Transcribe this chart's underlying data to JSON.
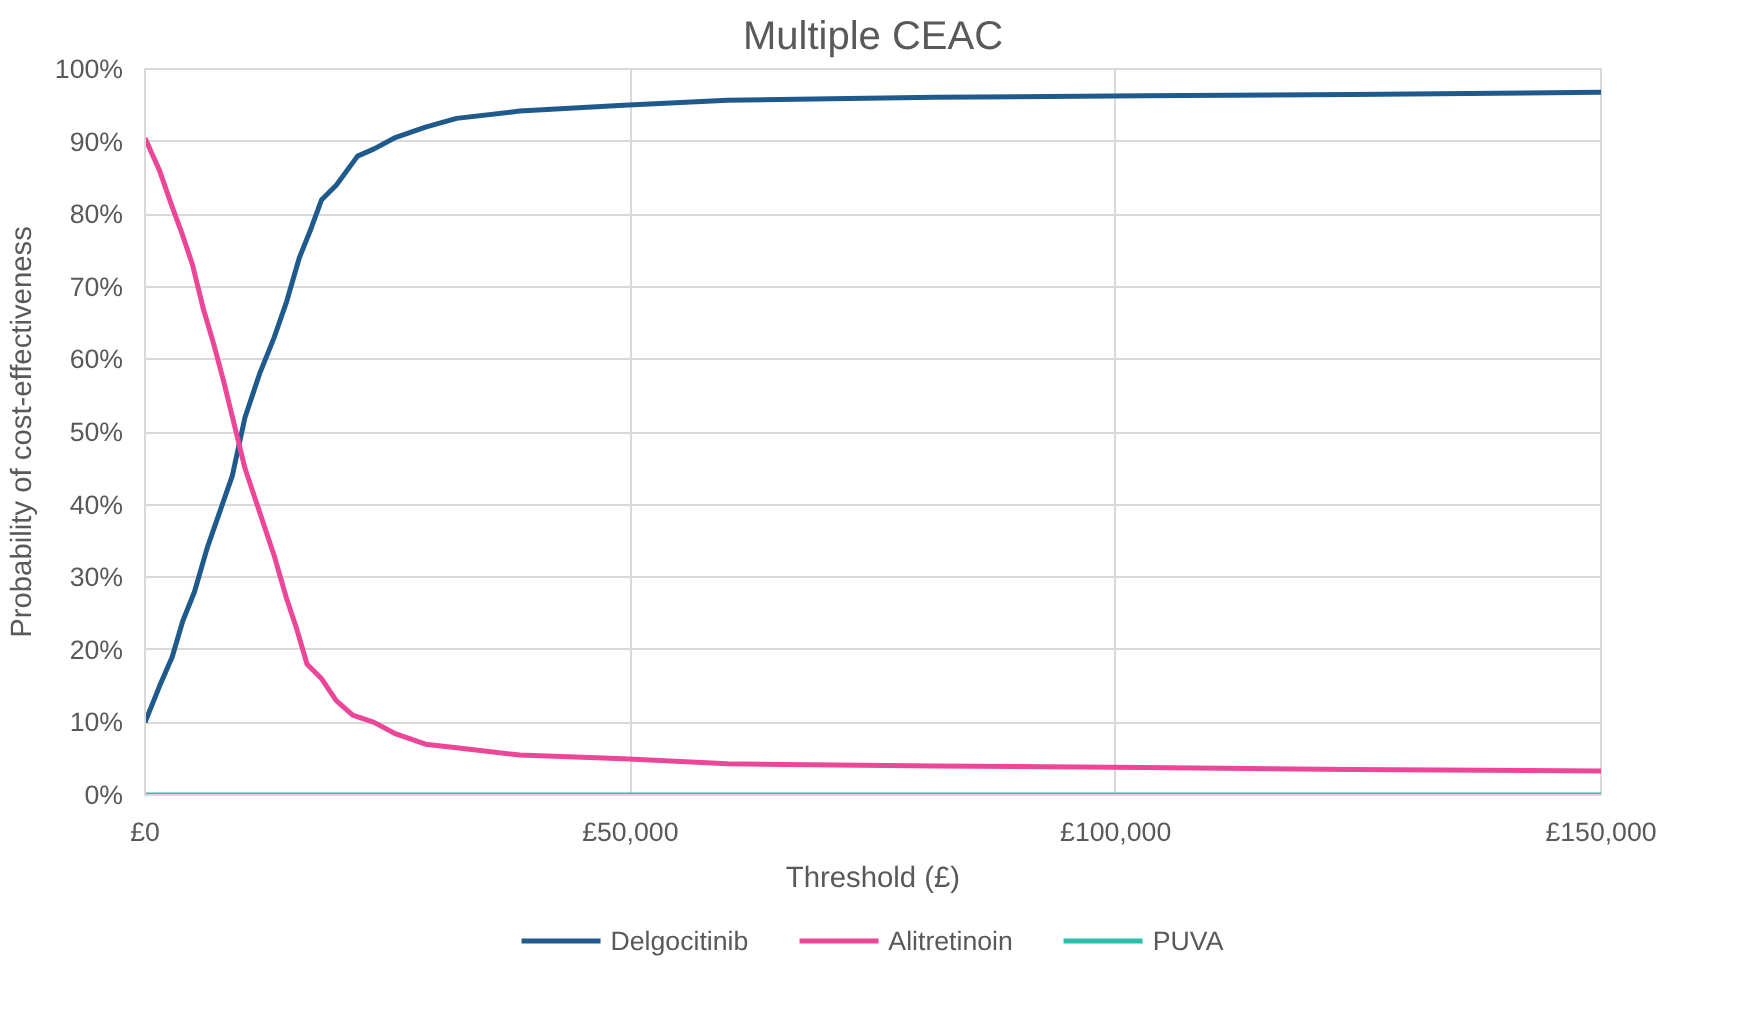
{
  "chart_data": {
    "type": "line",
    "title": "Multiple CEAC",
    "xlabel": "Threshold (£)",
    "ylabel": "Probability of cost-effectiveness",
    "xlim": [
      0,
      150000
    ],
    "ylim": [
      0,
      100
    ],
    "xticks": [
      {
        "value": 0,
        "label": "£0"
      },
      {
        "value": 50000,
        "label": "£50,000"
      },
      {
        "value": 100000,
        "label": "£100,000"
      },
      {
        "value": 150000,
        "label": "£150,000"
      }
    ],
    "yticks": [
      {
        "value": 0,
        "label": "0%"
      },
      {
        "value": 10,
        "label": "10%"
      },
      {
        "value": 20,
        "label": "20%"
      },
      {
        "value": 30,
        "label": "30%"
      },
      {
        "value": 40,
        "label": "40%"
      },
      {
        "value": 50,
        "label": "50%"
      },
      {
        "value": 60,
        "label": "60%"
      },
      {
        "value": 70,
        "label": "70%"
      },
      {
        "value": 80,
        "label": "80%"
      },
      {
        "value": 90,
        "label": "90%"
      },
      {
        "value": 100,
        "label": "100%"
      }
    ],
    "grid": true,
    "legend": "bottom",
    "marker": "none",
    "line_style": "solid",
    "series": [
      {
        "name": "Delgocitinib",
        "color": "#1f5a8c",
        "x": [
          0,
          1500,
          2800,
          3900,
          5100,
          6400,
          7700,
          9000,
          10300,
          11800,
          13300,
          14600,
          15900,
          17100,
          18200,
          19700,
          21900,
          23600,
          25700,
          28900,
          32100,
          38600,
          49300,
          60000,
          81400,
          102900,
          124300,
          150000
        ],
        "values": [
          10,
          15,
          19,
          24,
          28,
          34,
          39,
          44,
          52,
          58,
          63,
          68,
          74,
          78,
          82,
          84,
          88,
          89,
          90.5,
          92,
          93.2,
          94.2,
          95,
          95.7,
          96.1,
          96.3,
          96.5,
          96.8
        ]
      },
      {
        "name": "Alitretinoin",
        "color": "#ec4699",
        "x": [
          0,
          1500,
          2800,
          3900,
          4900,
          6000,
          7100,
          8100,
          9200,
          10300,
          11800,
          13300,
          14600,
          15600,
          16700,
          18200,
          19700,
          21400,
          23600,
          25700,
          28900,
          32100,
          38600,
          49300,
          60000,
          81400,
          102900,
          124300,
          150000
        ],
        "values": [
          90.5,
          86,
          81,
          77,
          73,
          67,
          62,
          57,
          51,
          45,
          39,
          33,
          27,
          23,
          18,
          16,
          13,
          11,
          10,
          8.5,
          7,
          6.5,
          5.5,
          5,
          4.3,
          4,
          3.8,
          3.5,
          3.3
        ]
      },
      {
        "name": "PUVA",
        "color": "#2bbfae",
        "x": [
          0,
          150000
        ],
        "values": [
          0,
          0
        ]
      }
    ]
  }
}
